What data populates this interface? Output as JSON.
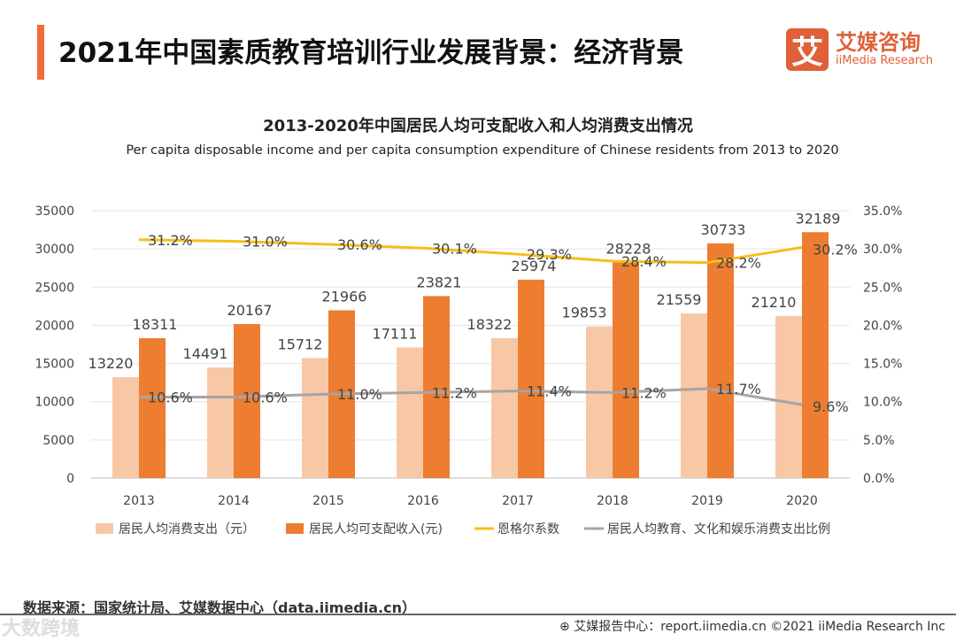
{
  "header": {
    "title": "2021年中国素质教育培训行业发展背景：经济背景",
    "logo_mark": "艾",
    "logo_cn": "艾媒咨询",
    "logo_en": "iiMedia Research"
  },
  "chart_data": {
    "type": "bar+line",
    "title": "2013-2020年中国居民人均可支配收入和人均消费支出情况",
    "subtitle": "Per capita disposable income and per capita consumption expenditure of Chinese residents from 2013 to 2020",
    "categories": [
      "2013",
      "2014",
      "2015",
      "2016",
      "2017",
      "2018",
      "2019",
      "2020"
    ],
    "ylim": [
      0,
      35000
    ],
    "y_ticks": [
      "0",
      "5000",
      "10000",
      "15000",
      "20000",
      "25000",
      "30000",
      "35000"
    ],
    "y2lim": [
      0,
      35
    ],
    "y2_ticks": [
      "0.0%",
      "5.0%",
      "10.0%",
      "15.0%",
      "20.0%",
      "25.0%",
      "30.0%",
      "35.0%"
    ],
    "series": [
      {
        "name": "居民人均消费支出（元）",
        "type": "bar",
        "color": "#f8c8a6",
        "values": [
          13220,
          14491,
          15712,
          17111,
          18322,
          19853,
          21559,
          21210
        ]
      },
      {
        "name": "居民人均可支配收入(元)",
        "type": "bar",
        "color": "#ed7d31",
        "values": [
          18311,
          20167,
          21966,
          23821,
          25974,
          28228,
          30733,
          32189
        ]
      },
      {
        "name": "恩格尔系数",
        "type": "line",
        "axis": "right",
        "color": "#f5bf1a",
        "values": [
          31.2,
          31.0,
          30.6,
          30.1,
          29.3,
          28.4,
          28.2,
          30.2
        ]
      },
      {
        "name": "居民人均教育、文化和娱乐消费支出比例",
        "type": "line",
        "axis": "right",
        "color": "#a5a5a5",
        "values": [
          10.6,
          10.6,
          11.0,
          11.2,
          11.4,
          11.2,
          11.7,
          9.6
        ]
      }
    ],
    "legend": "bottom"
  },
  "footer": {
    "source": "数据来源：国家统计局、艾媒数据中心（data.iimedia.cn）",
    "watermark": "大数跨境",
    "right": "⊕ 艾媒报告中心：report.iimedia.cn  ©2021  iiMedia Research  Inc"
  }
}
